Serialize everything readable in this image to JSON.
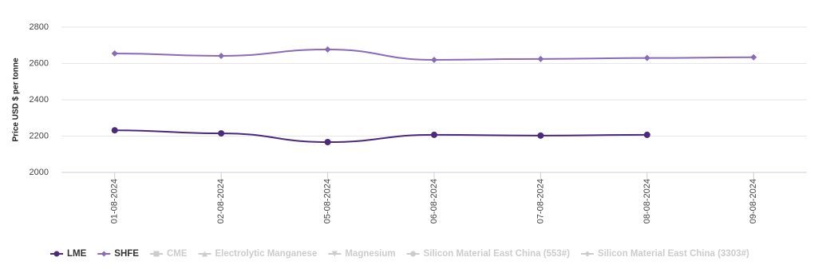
{
  "chart_data": {
    "type": "line",
    "y_label": "Price USD $ per tonne",
    "categories": [
      "01-08-2024",
      "02-08-2024",
      "05-08-2024",
      "06-08-2024",
      "07-08-2024",
      "08-08-2024",
      "09-08-2024"
    ],
    "series": [
      {
        "name": "LME",
        "color": "#4b2a7b",
        "marker": "circle",
        "values": [
          2232,
          2215,
          2167,
          2207,
          2203,
          2207,
          null
        ]
      },
      {
        "name": "SHFE",
        "color": "#8a6bb8",
        "marker": "diamond",
        "values": [
          2655,
          2642,
          2677,
          2620,
          2625,
          2630,
          2634
        ]
      },
      {
        "name": "CME",
        "color": "#cccccc",
        "marker": "square",
        "values": [
          null,
          null,
          null,
          null,
          null,
          null,
          null
        ]
      },
      {
        "name": "Electrolytic Manganese",
        "color": "#cccccc",
        "marker": "triangle",
        "values": [
          null,
          null,
          null,
          null,
          null,
          null,
          null
        ]
      },
      {
        "name": "Magnesium",
        "color": "#cccccc",
        "marker": "triangle-down",
        "values": [
          null,
          null,
          null,
          null,
          null,
          null,
          null
        ]
      },
      {
        "name": "Silicon Material East China (553#)",
        "color": "#cccccc",
        "marker": "circle",
        "values": [
          null,
          null,
          null,
          null,
          null,
          null,
          null
        ]
      },
      {
        "name": "Silicon Material East China (3303#)",
        "color": "#cccccc",
        "marker": "diamond",
        "values": [
          null,
          null,
          null,
          null,
          null,
          null,
          null
        ]
      }
    ],
    "ylim": [
      2000,
      2800
    ],
    "yticks": [
      2000,
      2200,
      2400,
      2600,
      2800
    ],
    "grid": true
  }
}
